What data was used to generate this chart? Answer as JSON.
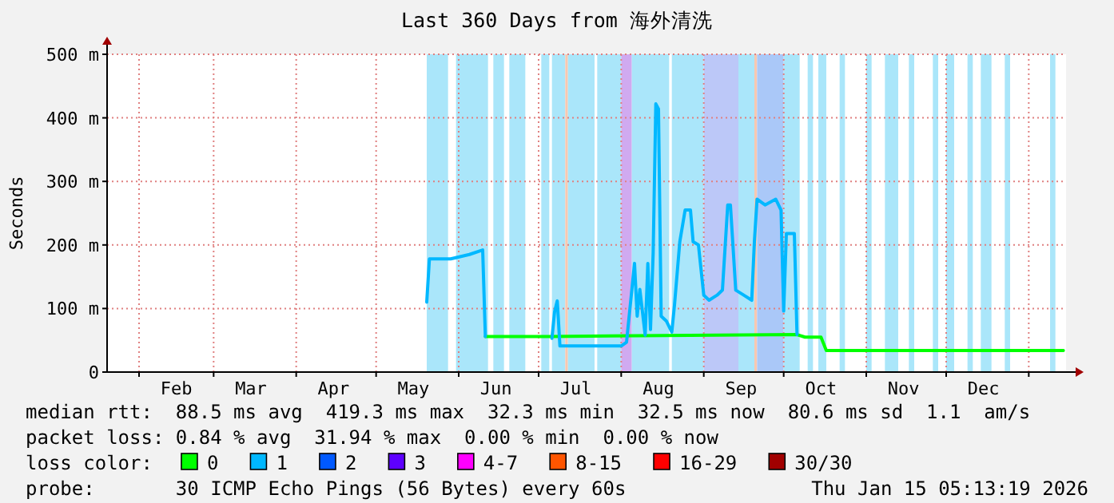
{
  "chart_data": {
    "type": "line",
    "title": "Last 360 Days from 海外清洗",
    "ylabel": "Seconds",
    "legend_title": "loss color:",
    "legend": "bottom",
    "grid": true,
    "line_style": "solid",
    "xlim": [
      "2025-01-20",
      "2026-01-15"
    ],
    "xticks": [
      {
        "value": "2025-02-01",
        "label": null
      },
      {
        "value": "2025-03-01",
        "label": null
      },
      {
        "value": "2025-04-01",
        "label": null
      },
      {
        "value": "2025-05-01",
        "label": null
      },
      {
        "value": "2025-06-01",
        "label": null
      },
      {
        "value": "2025-07-01",
        "label": null
      },
      {
        "value": "2025-08-01",
        "label": null
      },
      {
        "value": "2025-09-01",
        "label": null
      },
      {
        "value": "2025-10-01",
        "label": null
      },
      {
        "value": "2025-11-01",
        "label": null
      },
      {
        "value": "2025-12-01",
        "label": null
      },
      {
        "value": "2026-01-01",
        "label": null
      },
      {
        "value": "2025-02-15",
        "label": "Feb"
      },
      {
        "value": "2025-03-15",
        "label": "Mar"
      },
      {
        "value": "2025-04-15",
        "label": "Apr"
      },
      {
        "value": "2025-05-15",
        "label": "May"
      },
      {
        "value": "2025-06-15",
        "label": "Jun"
      },
      {
        "value": "2025-07-15",
        "label": "Jul"
      },
      {
        "value": "2025-08-15",
        "label": "Aug"
      },
      {
        "value": "2025-09-15",
        "label": "Sep"
      },
      {
        "value": "2025-10-15",
        "label": "Oct"
      },
      {
        "value": "2025-11-15",
        "label": "Nov"
      },
      {
        "value": "2025-12-15",
        "label": "Dec"
      }
    ],
    "ylim": [
      0,
      500
    ],
    "yticks": [
      {
        "value": 0,
        "label": "0"
      },
      {
        "value": 100,
        "label": "100 m"
      },
      {
        "value": 200,
        "label": "200 m"
      },
      {
        "value": 300,
        "label": "300 m"
      },
      {
        "value": 400,
        "label": "400 m"
      },
      {
        "value": 500,
        "label": "500 m"
      }
    ],
    "series": [
      {
        "name": "0",
        "color": "#00ff00",
        "x": [
          "2025-06-11",
          "2025-06-20",
          "2025-07-05",
          "2025-10-06",
          "2025-10-09",
          "2025-10-15",
          "2025-10-17",
          "2026-01-14"
        ],
        "values": [
          56,
          56,
          56,
          59,
          55,
          55,
          34,
          34
        ]
      },
      {
        "name": "1",
        "color": "#00b8ff",
        "x": [
          "2025-05-20",
          "2025-05-21",
          "2025-05-29",
          "2025-06-05",
          "2025-06-10",
          "2025-06-11"
        ],
        "values": [
          110,
          178,
          178,
          185,
          192,
          56
        ]
      },
      {
        "color": "#00b8ff",
        "x": [
          "2025-07-06",
          "2025-07-07",
          "2025-07-08",
          "2025-07-09",
          "2025-07-20",
          "2025-08-01",
          "2025-08-03",
          "2025-08-06",
          "2025-08-07",
          "2025-08-08",
          "2025-08-10",
          "2025-08-11",
          "2025-08-12",
          "2025-08-13",
          "2025-08-14",
          "2025-08-15",
          "2025-08-16",
          "2025-08-18",
          "2025-08-20",
          "2025-08-21",
          "2025-08-23",
          "2025-08-25",
          "2025-08-27",
          "2025-08-28",
          "2025-08-30",
          "2025-09-01",
          "2025-09-03",
          "2025-09-06",
          "2025-09-08",
          "2025-09-10",
          "2025-09-11",
          "2025-09-13",
          "2025-09-16",
          "2025-09-19",
          "2025-09-20",
          "2025-09-21",
          "2025-09-24",
          "2025-09-28",
          "2025-09-30",
          "2025-10-01",
          "2025-10-02",
          "2025-10-05",
          "2025-10-06"
        ],
        "values": [
          53,
          95,
          112,
          41,
          41,
          41,
          47,
          171,
          88,
          130,
          58,
          171,
          67,
          188,
          422,
          414,
          88,
          80,
          63,
          105,
          205,
          255,
          255,
          205,
          200,
          121,
          113,
          121,
          129,
          263,
          263,
          129,
          121,
          113,
          205,
          272,
          263,
          272,
          255,
          96,
          218,
          218,
          59
        ]
      },
      {
        "name": "2",
        "color": "#0059ff"
      },
      {
        "name": "3",
        "color": "#5e00ff"
      },
      {
        "name": "4-7",
        "color": "#ff00ff"
      },
      {
        "name": "8-15",
        "color": "#ff5500"
      },
      {
        "name": "16-29",
        "color": "#ff0000"
      },
      {
        "name": "30/30",
        "color": "#a10000"
      }
    ],
    "bands": [
      {
        "axis": "x",
        "from": "2025-05-20",
        "to": "2025-05-28",
        "color": "#aae6fa"
      },
      {
        "axis": "x",
        "from": "2025-05-31",
        "to": "2025-06-12",
        "color": "#aae6fa"
      },
      {
        "axis": "x",
        "from": "2025-06-14",
        "to": "2025-06-18",
        "color": "#aae6fa"
      },
      {
        "axis": "x",
        "from": "2025-06-20",
        "to": "2025-06-26",
        "color": "#aae6fa"
      },
      {
        "axis": "x",
        "from": "2025-07-02",
        "to": "2025-07-05",
        "color": "#aae6fa"
      },
      {
        "axis": "x",
        "from": "2025-07-06",
        "to": "2025-07-11",
        "color": "#aae6fa"
      },
      {
        "axis": "x",
        "from": "2025-07-11",
        "to": "2025-07-12",
        "color": "#f8c8b0"
      },
      {
        "axis": "x",
        "from": "2025-07-12",
        "to": "2025-07-22",
        "color": "#aae6fa"
      },
      {
        "axis": "x",
        "from": "2025-07-23",
        "to": "2025-08-01",
        "color": "#aae6fa"
      },
      {
        "axis": "x",
        "from": "2025-08-01",
        "to": "2025-08-05",
        "color": "#d0aaf0"
      },
      {
        "axis": "x",
        "from": "2025-08-05",
        "to": "2025-08-19",
        "color": "#aae6fa"
      },
      {
        "axis": "x",
        "from": "2025-08-20",
        "to": "2025-09-01",
        "color": "#aae6fa"
      },
      {
        "axis": "x",
        "from": "2025-09-01",
        "to": "2025-09-14",
        "color": "#bcc8f8"
      },
      {
        "axis": "x",
        "from": "2025-09-14",
        "to": "2025-09-20",
        "color": "#aae6fa"
      },
      {
        "axis": "x",
        "from": "2025-09-20",
        "to": "2025-09-21",
        "color": "#f8c8b0"
      },
      {
        "axis": "x",
        "from": "2025-09-21",
        "to": "2025-10-01",
        "color": "#aac8f8"
      },
      {
        "axis": "x",
        "from": "2025-10-01",
        "to": "2025-10-07",
        "color": "#aae6fa"
      },
      {
        "axis": "x",
        "from": "2025-10-10",
        "to": "2025-10-12",
        "color": "#aae6fa"
      },
      {
        "axis": "x",
        "from": "2025-10-14",
        "to": "2025-10-17",
        "color": "#aae6fa"
      },
      {
        "axis": "x",
        "from": "2025-10-22",
        "to": "2025-10-24",
        "color": "#aae6fa"
      },
      {
        "axis": "x",
        "from": "2025-11-01",
        "to": "2025-11-03",
        "color": "#aae6fa"
      },
      {
        "axis": "x",
        "from": "2025-11-08",
        "to": "2025-11-13",
        "color": "#aae6fa"
      },
      {
        "axis": "x",
        "from": "2025-11-17",
        "to": "2025-11-19",
        "color": "#aae6fa"
      },
      {
        "axis": "x",
        "from": "2025-11-26",
        "to": "2025-11-28",
        "color": "#aae6fa"
      },
      {
        "axis": "x",
        "from": "2025-12-01",
        "to": "2025-12-04",
        "color": "#aae6fa"
      },
      {
        "axis": "x",
        "from": "2025-12-09",
        "to": "2025-12-11",
        "color": "#aae6fa"
      },
      {
        "axis": "x",
        "from": "2025-12-14",
        "to": "2025-12-18",
        "color": "#aae6fa"
      },
      {
        "axis": "x",
        "from": "2025-12-23",
        "to": "2025-12-25",
        "color": "#aae6fa"
      },
      {
        "axis": "x",
        "from": "2026-01-09",
        "to": "2026-01-11",
        "color": "#aae6fa"
      }
    ],
    "annotations": [
      "median rtt:  88.5 ms avg  419.3 ms max  32.3 ms min  32.5 ms now  80.6 ms sd  1.1  am/s",
      "packet loss: 0.84 % avg  31.94 % max  0.00 % min  0.00 % now",
      "probe:       30 ICMP Echo Pings (56 Bytes) every 60s",
      "Thu Jan 15 05:13:19 2026"
    ]
  }
}
